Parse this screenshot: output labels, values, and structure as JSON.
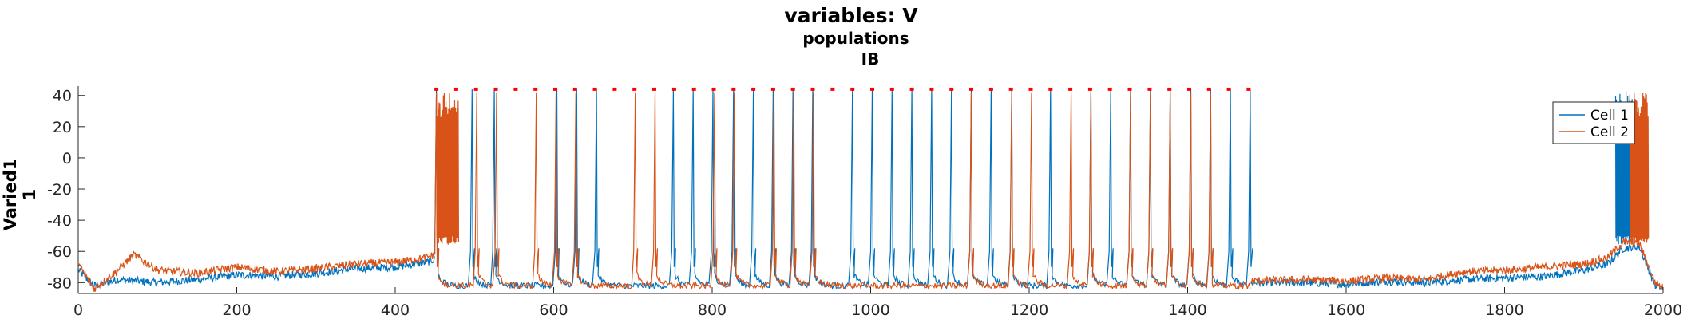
{
  "chart_data": {
    "type": "line",
    "title": "variables: V",
    "subtitle_line1": "populations",
    "subtitle_line2": "IB",
    "ylabel_line1": "Varied1",
    "ylabel_line2": "1",
    "xlabel": "",
    "xlim": [
      0,
      2000
    ],
    "ylim": [
      -87,
      46
    ],
    "x_ticks": [
      0,
      200,
      400,
      600,
      800,
      1000,
      1200,
      1400,
      1600,
      1800,
      2000
    ],
    "y_ticks": [
      40,
      20,
      0,
      -20,
      -40,
      -60,
      -80
    ],
    "grid": false,
    "legend_position": "top-right",
    "colors": {
      "cell1": "#0072BD",
      "cell2": "#D95319",
      "markers": "#FF0000",
      "axes": "#262626"
    },
    "series": [
      {
        "name": "Cell 1",
        "baseline_segments": [
          {
            "x": [
              0,
              20,
              50,
              100,
              150,
              200,
              250,
              300,
              350,
              400,
              440,
              450
            ],
            "y": [
              -72,
              -82,
              -78,
              -80,
              -78,
              -75,
              -76,
              -74,
              -71,
              -70,
              -67,
              -65
            ]
          },
          {
            "x": [
              1480,
              1550,
              1600,
              1650,
              1700,
              1750,
              1800,
              1850,
              1900,
              1930,
              1950,
              1970,
              1990,
              2000
            ],
            "y": [
              -80,
              -80,
              -81,
              -79,
              -80,
              -78,
              -77,
              -76,
              -72,
              -68,
              -58,
              -57,
              -82,
              -84
            ]
          }
        ],
        "spike_times": [
          452,
          497,
          525,
          604,
          629,
          654,
          751,
          776,
          801,
          827,
          852,
          877,
          902,
          927,
          977,
          1002,
          1027,
          1052,
          1077,
          1102,
          1127,
          1152,
          1178,
          1227,
          1278,
          1303,
          1328,
          1353,
          1378,
          1404,
          1429,
          1454,
          1479
        ],
        "burst_windows": [
          [
            1940,
            1965
          ]
        ],
        "spike_peak": 44
      },
      {
        "name": "Cell 2",
        "baseline_segments": [
          {
            "x": [
              0,
              20,
              50,
              70,
              100,
              150,
              200,
              250,
              300,
              350,
              400,
              440,
              450
            ],
            "y": [
              -68,
              -84,
              -72,
              -62,
              -72,
              -74,
              -70,
              -73,
              -71,
              -68,
              -67,
              -64,
              -62
            ]
          },
          {
            "x": [
              1480,
              1550,
              1600,
              1650,
              1700,
              1750,
              1800,
              1850,
              1900,
              1930,
              1950,
              1970,
              1990,
              2000
            ],
            "y": [
              -79,
              -78,
              -79,
              -77,
              -78,
              -73,
              -72,
              -70,
              -68,
              -64,
              -54,
              -55,
              -80,
              -83
            ]
          }
        ],
        "spike_times": [
          452,
          503,
          528,
          578,
          603,
          628,
          703,
          728,
          803,
          828,
          878,
          903,
          928,
          1127,
          1178,
          1203,
          1253,
          1278,
          1328,
          1353,
          1378,
          1404,
          1429
        ],
        "burst_windows": [
          [
            452,
            480
          ],
          [
            1958,
            1982
          ]
        ],
        "spike_peak": 42
      }
    ],
    "marker_times": [
      452,
      477,
      502,
      527,
      552,
      577,
      602,
      627,
      652,
      677,
      702,
      727,
      752,
      777,
      802,
      827,
      852,
      877,
      902,
      927,
      952,
      977,
      1002,
      1027,
      1052,
      1077,
      1102,
      1127,
      1152,
      1177,
      1202,
      1227,
      1252,
      1277,
      1302,
      1327,
      1352,
      1377,
      1402,
      1427,
      1452,
      1477
    ],
    "marker_y": 44
  }
}
